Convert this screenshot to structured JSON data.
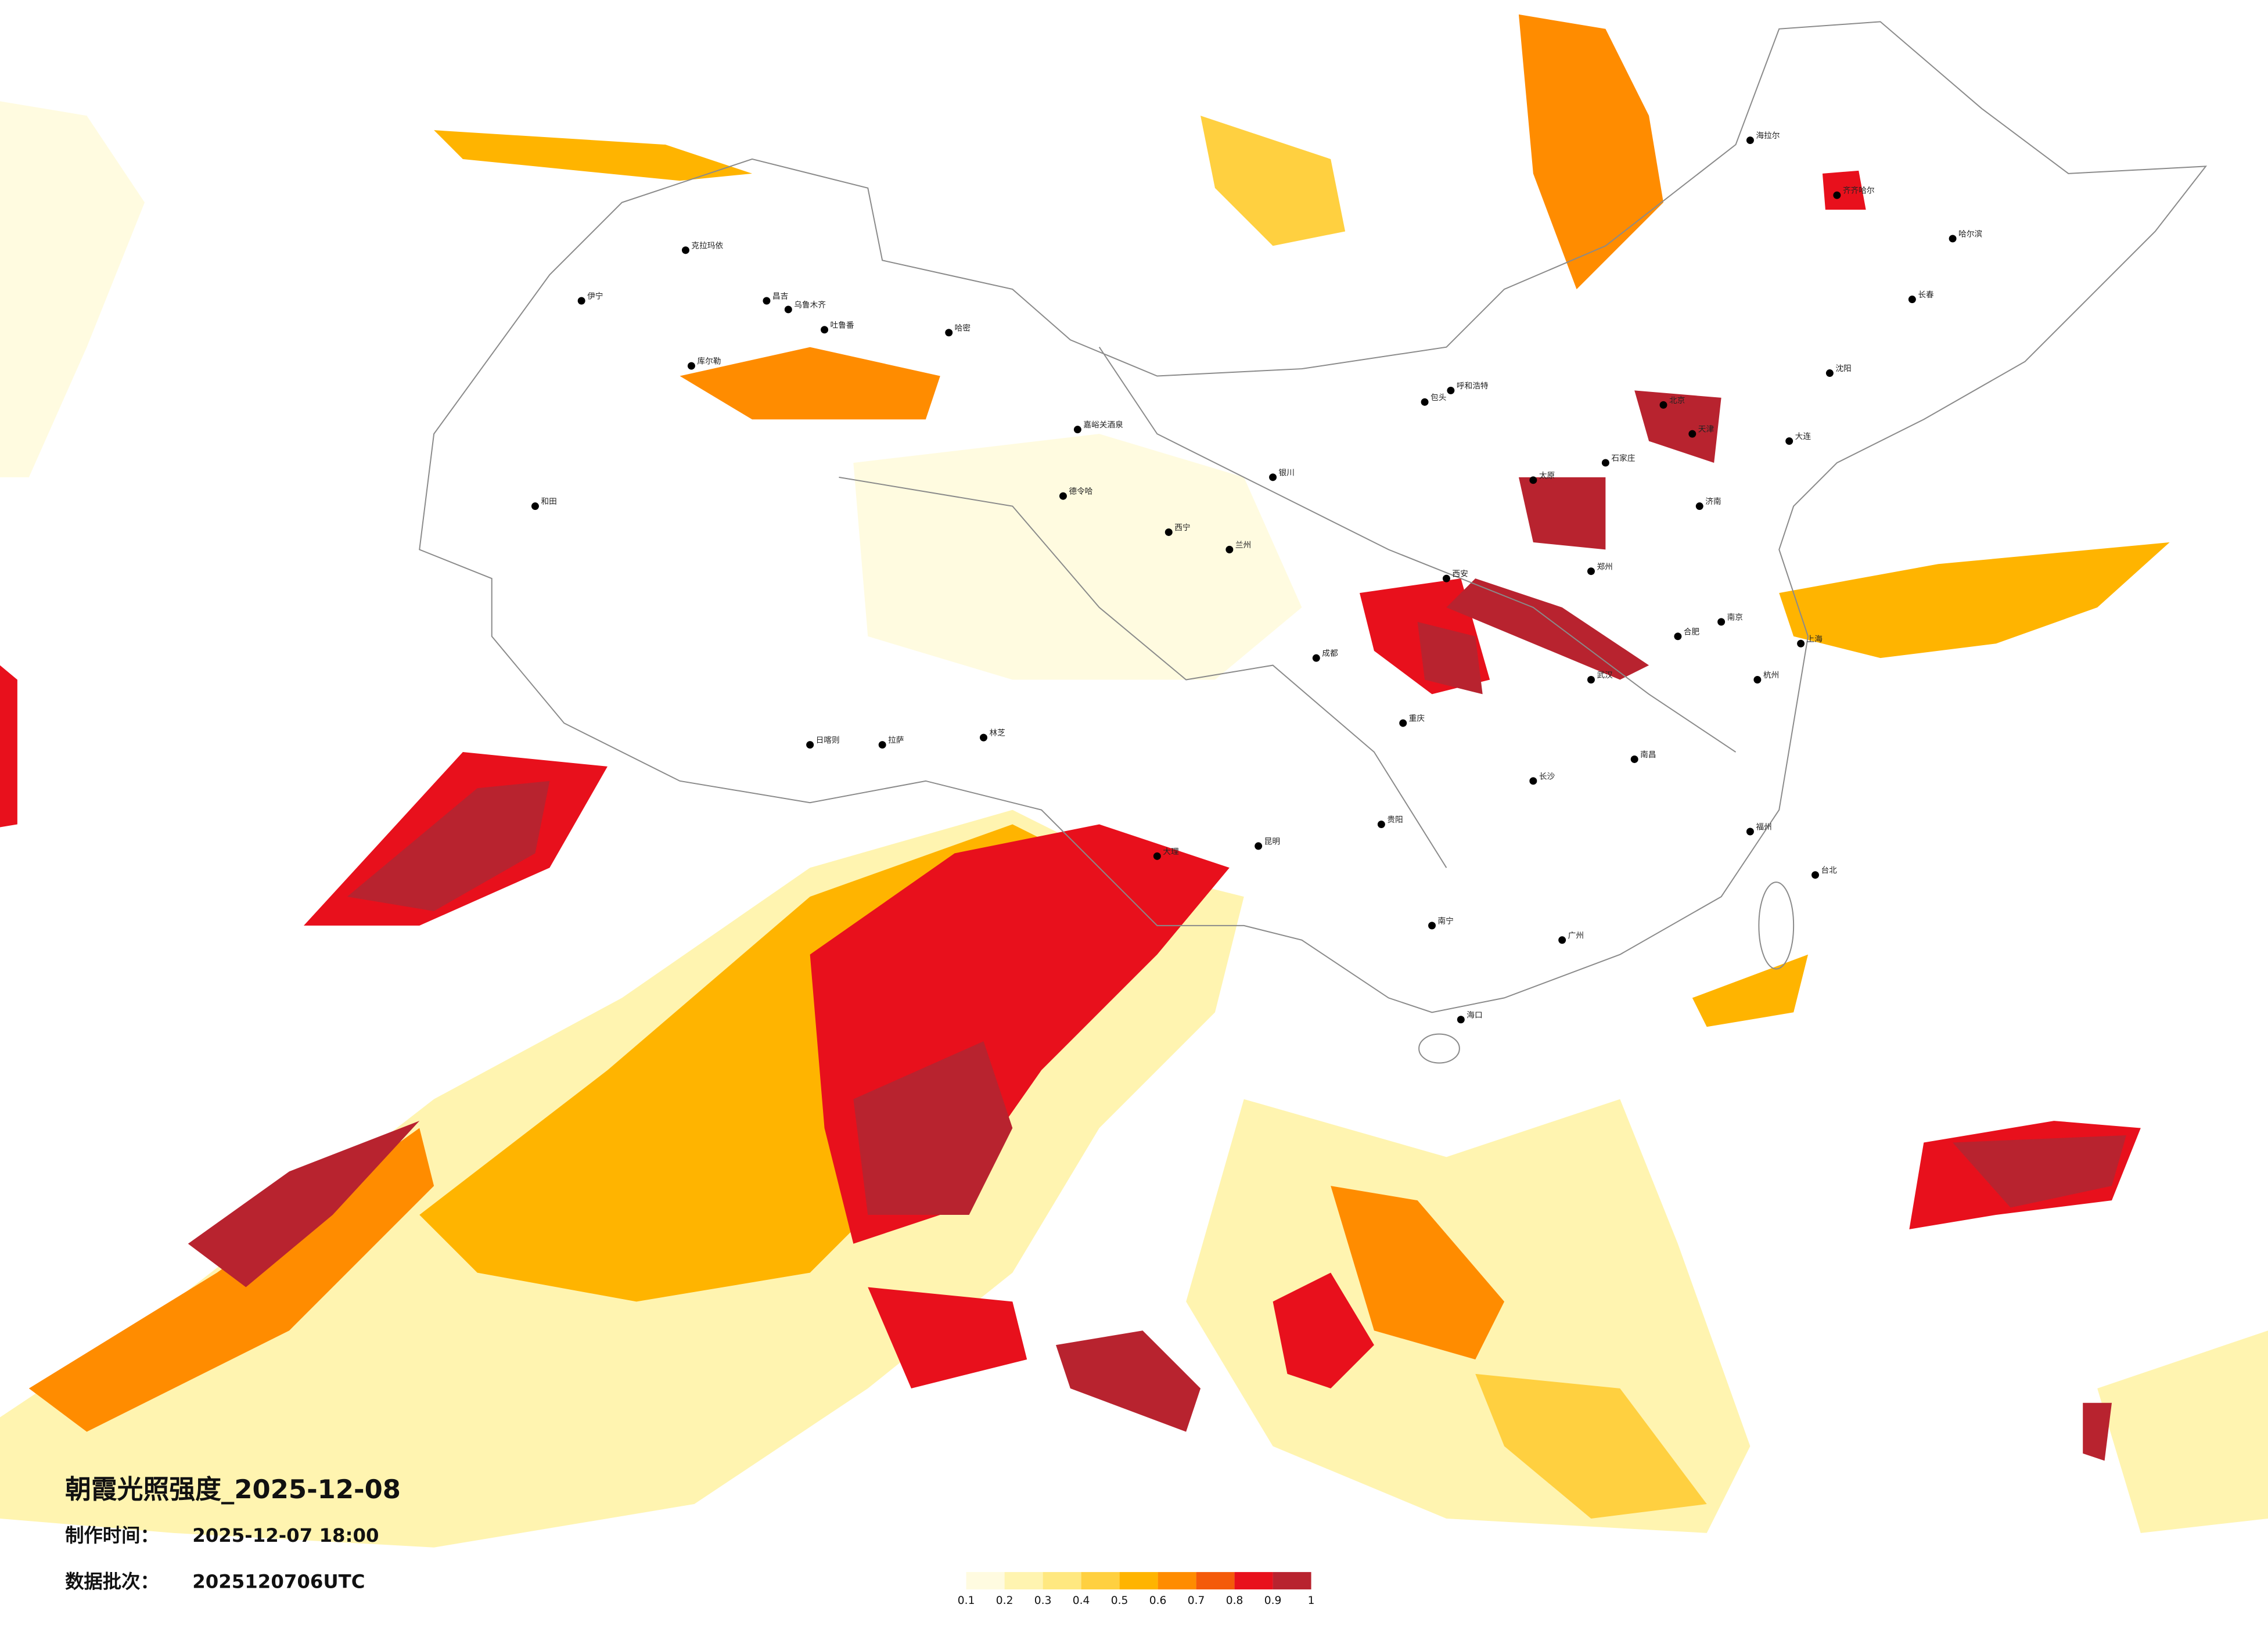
{
  "title": "朝霞光照强度_2025-12-08",
  "production_time": {
    "label": "制作时间：",
    "value": "2025-12-07 18:00"
  },
  "data_batch": {
    "label": "数据批次：",
    "value": "2025120706UTC"
  },
  "legend": {
    "ticks": [
      0.1,
      0.2,
      0.3,
      0.4,
      0.5,
      0.6,
      0.7,
      0.8,
      0.9,
      1
    ],
    "colors": [
      "#fffbe0",
      "#fff4b0",
      "#ffe880",
      "#ffd040",
      "#ffb400",
      "#ff8c00",
      "#f45a0a",
      "#e8101c",
      "#b8232f"
    ]
  },
  "cities": [
    "克拉玛依",
    "伊宁",
    "昌吉",
    "乌鲁木齐",
    "吐鲁番",
    "哈密",
    "库尔勒",
    "和田",
    "德令哈",
    "嘉峪关酒泉",
    "西宁",
    "兰州",
    "银川",
    "呼和浩特",
    "包头",
    "海拉尔",
    "齐齐哈尔",
    "哈尔滨",
    "长春",
    "沈阳",
    "大连",
    "北京",
    "天津",
    "石家庄",
    "太原",
    "济南",
    "郑州",
    "西安",
    "成都",
    "重庆",
    "贵阳",
    "昆明",
    "南宁",
    "广州",
    "长沙",
    "武汉",
    "南昌",
    "福州",
    "杭州",
    "南京",
    "合肥",
    "上海",
    "台北",
    "拉萨",
    "日喀则",
    "林芝",
    "海口",
    "大理"
  ]
}
